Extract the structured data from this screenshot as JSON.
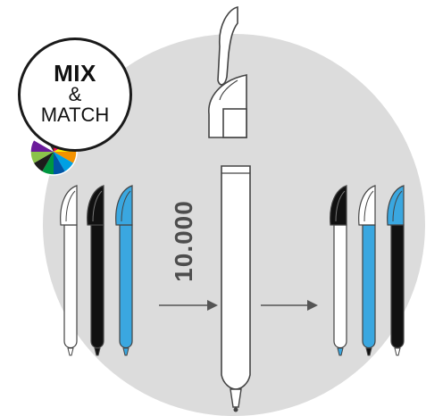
{
  "badge": {
    "line1": "MIX",
    "line2": "&",
    "line3": "MATCH"
  },
  "quantity": "10.000",
  "colors": {
    "background_circle": "#dcdcdc",
    "pen_white": "#ffffff",
    "pen_black": "#111111",
    "pen_blue": "#3aa7e0",
    "outline": "#444444",
    "arrow": "#555555"
  },
  "color_wheel": [
    "#e30613",
    "#e6007e",
    "#ffed00",
    "#f39200",
    "#00a0e3",
    "#0055a5",
    "#00963f",
    "#1d1d1b",
    "#8bc34a",
    "#6a1b9a",
    "#ffffff",
    "#2e2e2e"
  ],
  "input_pens": [
    {
      "body": "white",
      "clip": "white"
    },
    {
      "body": "black",
      "clip": "black"
    },
    {
      "body": "blue",
      "clip": "blue"
    }
  ],
  "output_pens": [
    {
      "body": "white",
      "clip": "black",
      "tip": "blue"
    },
    {
      "body": "blue",
      "clip": "white",
      "tip": "black"
    },
    {
      "body": "black",
      "clip": "blue",
      "tip": "white"
    }
  ]
}
